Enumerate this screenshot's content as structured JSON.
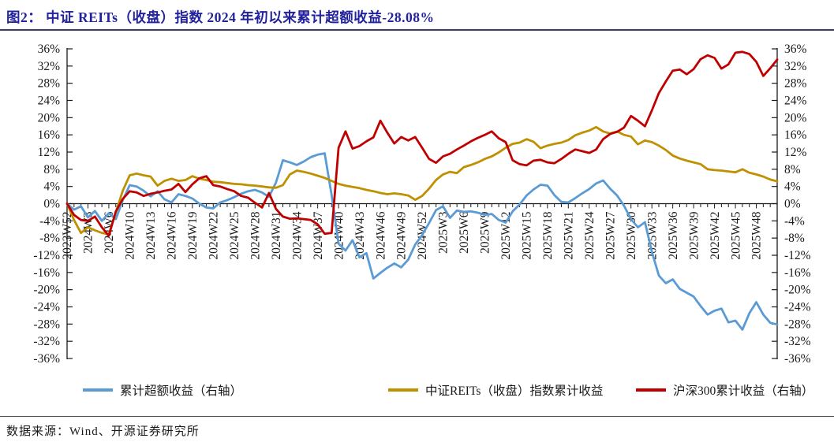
{
  "figure": {
    "title": "图2：  中证 REITs（收盘）指数 2024 年初以来累计超额收益-28.08%"
  },
  "source": {
    "text": "数据来源：Wind、开源证券研究所"
  },
  "chart_data": {
    "type": "line",
    "title": "中证REITs（收盘）指数2024年初以来累计超额收益-28.08%",
    "ylim": [
      -36,
      36
    ],
    "ytick_step": 4,
    "ytick_suffix": "%",
    "grid": false,
    "legend_position": "bottom",
    "dual_axis_note": "left and right axes share the same -36%..36% scale",
    "x_tick_labels": [
      "2023W52",
      "2024W3",
      "2024W6",
      "2024W10",
      "2024W13",
      "2024W16",
      "2024W19",
      "2024W22",
      "2024W25",
      "2024W28",
      "2024W31",
      "2024W34",
      "2024W37",
      "2024W40",
      "2024W43",
      "2024W46",
      "2024W49",
      "2024W52",
      "2025W3",
      "2025W6",
      "2025W9",
      "2025W12",
      "2025W15",
      "2025W18",
      "2025W21",
      "2025W24",
      "2025W27",
      "2025W30",
      "2025W33",
      "2025W36",
      "2025W39",
      "2025W42",
      "2025W45",
      "2025W48"
    ],
    "tick_every": 3,
    "series": [
      {
        "name": "累计超额收益（右轴）",
        "color": "#5B9BD5",
        "axis": "right",
        "values": [
          0.0,
          -1.4,
          -0.6,
          -3.2,
          -1.7,
          -4.0,
          -2.2,
          -3.6,
          0.8,
          4.3,
          4.0,
          3.0,
          1.7,
          2.9,
          1.0,
          0.3,
          2.2,
          1.8,
          1.2,
          0.0,
          -0.9,
          -1.1,
          0.3,
          0.8,
          1.5,
          2.3,
          2.9,
          3.2,
          2.6,
          1.6,
          4.9,
          10.1,
          9.6,
          9.0,
          9.8,
          10.8,
          11.4,
          11.7,
          2.0,
          -9.3,
          -10.9,
          -8.5,
          -12.5,
          -11.5,
          -17.4,
          -16.1,
          -14.9,
          -13.9,
          -14.8,
          -13.0,
          -9.5,
          -7.3,
          -4.5,
          -1.5,
          -0.6,
          -3.3,
          -1.6,
          -1.9,
          -1.8,
          -2.1,
          -2.6,
          -2.4,
          -3.8,
          -4.4,
          -1.8,
          -0.2,
          1.9,
          3.3,
          4.4,
          4.2,
          2.0,
          0.4,
          0.3,
          1.3,
          2.4,
          3.4,
          4.7,
          5.4,
          3.5,
          1.9,
          -0.5,
          -3.6,
          -5.5,
          -4.3,
          -11.2,
          -16.7,
          -18.5,
          -17.6,
          -19.8,
          -20.7,
          -21.6,
          -23.8,
          -25.8,
          -24.9,
          -24.4,
          -27.6,
          -27.2,
          -29.3,
          -25.5,
          -22.9,
          -25.8,
          -27.7,
          -28.08
        ]
      },
      {
        "name": "中证REITs（收盘）指数累计收益",
        "color": "#BF9000",
        "axis": "left",
        "values": [
          0.0,
          -3.8,
          -6.8,
          -5.5,
          -6.2,
          -6.8,
          -7.1,
          -2.0,
          3.0,
          6.6,
          7.0,
          6.6,
          6.3,
          4.2,
          5.3,
          5.8,
          5.3,
          5.5,
          6.4,
          5.8,
          5.5,
          5.1,
          5.0,
          4.8,
          4.6,
          4.5,
          4.3,
          4.2,
          4.0,
          3.8,
          3.7,
          4.3,
          6.8,
          7.7,
          7.4,
          7.0,
          6.5,
          6.0,
          5.3,
          4.6,
          4.2,
          3.9,
          3.6,
          3.2,
          2.9,
          2.5,
          2.2,
          2.4,
          2.2,
          1.9,
          0.9,
          1.8,
          3.5,
          5.5,
          6.8,
          7.4,
          7.1,
          8.5,
          9.0,
          9.6,
          10.4,
          11.0,
          11.9,
          13.0,
          13.9,
          14.2,
          15.0,
          14.4,
          12.9,
          13.5,
          13.9,
          14.2,
          14.8,
          15.9,
          16.5,
          17.0,
          17.8,
          16.8,
          16.3,
          16.8,
          16.0,
          15.6,
          13.8,
          14.7,
          14.3,
          13.5,
          12.5,
          11.2,
          10.5,
          10.0,
          9.6,
          9.2,
          8.0,
          7.8,
          7.7,
          7.5,
          7.3,
          8.0,
          7.2,
          6.8,
          6.3,
          5.6,
          5.2
        ]
      },
      {
        "name": "沪深300累计收益（右轴）",
        "color": "#C00000",
        "axis": "right",
        "values": [
          0.0,
          -2.6,
          -3.8,
          -4.0,
          -3.0,
          -5.5,
          -7.5,
          -1.8,
          1.1,
          2.9,
          2.6,
          1.8,
          2.3,
          2.6,
          3.0,
          3.3,
          4.6,
          2.7,
          4.5,
          5.9,
          6.4,
          4.3,
          4.0,
          3.4,
          2.9,
          1.8,
          1.4,
          0.2,
          -0.9,
          2.5,
          -1.2,
          -3.0,
          -3.5,
          -3.4,
          -3.6,
          -3.8,
          -4.8,
          -7.0,
          -6.8,
          13.0,
          16.8,
          12.8,
          13.4,
          14.5,
          15.4,
          19.3,
          16.5,
          14.0,
          15.5,
          14.7,
          15.5,
          13.0,
          10.4,
          9.5,
          11.0,
          11.6,
          12.6,
          13.5,
          14.5,
          15.3,
          16.0,
          16.8,
          15.2,
          14.3,
          10.1,
          9.2,
          8.9,
          10.0,
          10.2,
          9.6,
          9.4,
          10.4,
          11.6,
          12.6,
          12.2,
          11.8,
          12.6,
          15.0,
          16.2,
          16.7,
          17.7,
          20.4,
          19.3,
          18.0,
          21.7,
          25.7,
          28.4,
          30.9,
          31.2,
          30.1,
          31.3,
          33.6,
          34.5,
          33.9,
          31.4,
          32.4,
          35.1,
          35.3,
          34.8,
          33.0,
          29.7,
          31.5,
          33.5
        ]
      }
    ]
  }
}
